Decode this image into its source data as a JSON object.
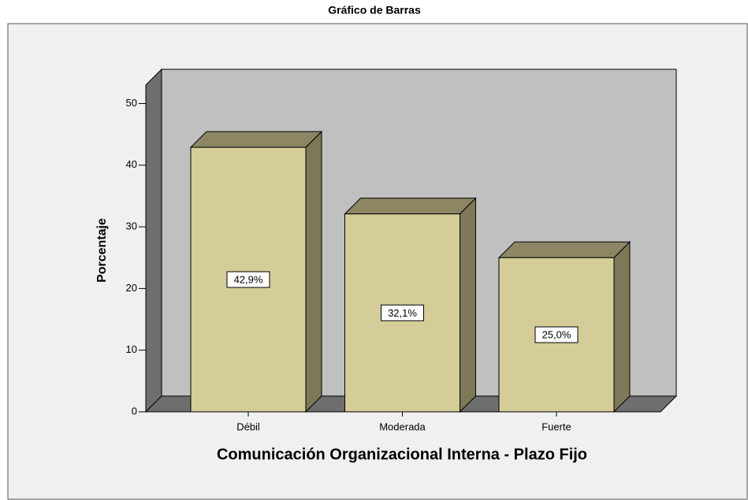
{
  "chart_data": {
    "type": "bar3d",
    "title": "Gráfico de Barras",
    "x_label": "Comunicación Organizacional Interna - Plazo Fijo",
    "y_label": "Porcentaje",
    "categories": [
      "Débil",
      "Moderada",
      "Fuerte"
    ],
    "values": [
      42.9,
      32.1,
      25.0
    ],
    "value_labels": [
      "42,9%",
      "32,1%",
      "25,0%"
    ],
    "color": "#d4cd98",
    "ylim": [
      0,
      53
    ],
    "yticks": [
      0,
      10,
      20,
      30,
      40,
      50
    ]
  }
}
